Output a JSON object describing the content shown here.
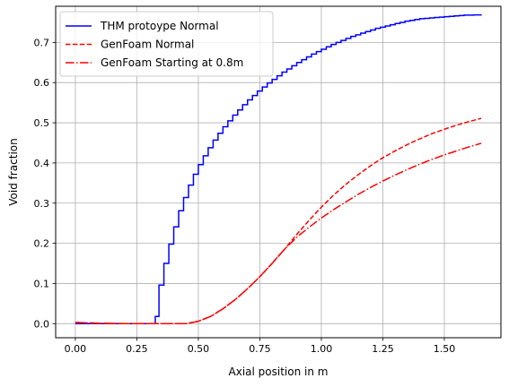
{
  "chart_data": {
    "type": "line",
    "title": "",
    "xlabel": "Axial position in m",
    "ylabel": "Void fraction",
    "xlim": [
      -0.08,
      1.73
    ],
    "ylim": [
      -0.035,
      0.79
    ],
    "grid": true,
    "legend_position": "top-left",
    "x_ticks": [
      0.0,
      0.25,
      0.5,
      0.75,
      1.0,
      1.25,
      1.5
    ],
    "x_tick_labels": [
      "0.00",
      "0.25",
      "0.50",
      "0.75",
      "1.00",
      "1.25",
      "1.50"
    ],
    "y_ticks": [
      0.0,
      0.1,
      0.2,
      0.3,
      0.4,
      0.5,
      0.6,
      0.7
    ],
    "y_tick_labels": [
      "0.0",
      "0.1",
      "0.2",
      "0.3",
      "0.4",
      "0.5",
      "0.6",
      "0.7"
    ],
    "series": [
      {
        "name": "THM protoype Normal",
        "color": "#0000ff",
        "style": "steps-post",
        "x": [
          0.0,
          0.025,
          0.05,
          0.075,
          0.1,
          0.125,
          0.15,
          0.175,
          0.2,
          0.225,
          0.25,
          0.275,
          0.3,
          0.325,
          0.34,
          0.36,
          0.38,
          0.4,
          0.42,
          0.44,
          0.46,
          0.48,
          0.5,
          0.52,
          0.54,
          0.56,
          0.58,
          0.6,
          0.62,
          0.64,
          0.66,
          0.68,
          0.7,
          0.72,
          0.74,
          0.76,
          0.78,
          0.8,
          0.82,
          0.84,
          0.86,
          0.88,
          0.9,
          0.92,
          0.94,
          0.96,
          0.98,
          1.0,
          1.02,
          1.04,
          1.06,
          1.08,
          1.1,
          1.12,
          1.14,
          1.16,
          1.18,
          1.2,
          1.22,
          1.24,
          1.26,
          1.28,
          1.3,
          1.32,
          1.34,
          1.36,
          1.38,
          1.4,
          1.42,
          1.44,
          1.46,
          1.48,
          1.5,
          1.52,
          1.54,
          1.56,
          1.58,
          1.6,
          1.62,
          1.65
        ],
        "y": [
          0.0,
          0.0,
          0.0,
          0.0,
          0.0,
          0.0,
          0.0,
          0.0,
          0.0,
          0.0,
          0.0,
          0.0,
          0.0,
          0.018,
          0.096,
          0.15,
          0.198,
          0.241,
          0.281,
          0.314,
          0.345,
          0.372,
          0.396,
          0.418,
          0.438,
          0.457,
          0.474,
          0.49,
          0.505,
          0.519,
          0.532,
          0.545,
          0.557,
          0.568,
          0.579,
          0.589,
          0.599,
          0.608,
          0.617,
          0.626,
          0.634,
          0.642,
          0.65,
          0.657,
          0.664,
          0.671,
          0.677,
          0.683,
          0.689,
          0.695,
          0.7,
          0.705,
          0.71,
          0.715,
          0.719,
          0.723,
          0.727,
          0.731,
          0.735,
          0.738,
          0.741,
          0.744,
          0.747,
          0.75,
          0.753,
          0.755,
          0.757,
          0.759,
          0.76,
          0.761,
          0.762,
          0.763,
          0.764,
          0.765,
          0.766,
          0.767,
          0.768,
          0.768,
          0.7685,
          0.769
        ]
      },
      {
        "name": "GenFoam Normal",
        "color": "#ff0000",
        "style": "dashed",
        "x": [
          0.0,
          0.1,
          0.2,
          0.3,
          0.4,
          0.45,
          0.5,
          0.55,
          0.6,
          0.65,
          0.7,
          0.75,
          0.8,
          0.85,
          0.9,
          0.95,
          1.0,
          1.05,
          1.1,
          1.15,
          1.2,
          1.25,
          1.3,
          1.35,
          1.4,
          1.45,
          1.5,
          1.55,
          1.6,
          1.65
        ],
        "y": [
          0.003,
          0.001,
          0.0,
          0.0,
          0.0,
          0.0,
          0.006,
          0.018,
          0.037,
          0.06,
          0.087,
          0.117,
          0.15,
          0.185,
          0.222,
          0.257,
          0.29,
          0.32,
          0.347,
          0.371,
          0.393,
          0.413,
          0.43,
          0.446,
          0.46,
          0.473,
          0.484,
          0.494,
          0.503,
          0.511
        ]
      },
      {
        "name": "GenFoam Starting at 0.8m",
        "color": "#ff0000",
        "style": "dashdot",
        "x": [
          0.0,
          0.1,
          0.2,
          0.3,
          0.4,
          0.45,
          0.5,
          0.55,
          0.6,
          0.65,
          0.7,
          0.75,
          0.8,
          0.85,
          0.9,
          0.95,
          1.0,
          1.05,
          1.1,
          1.15,
          1.2,
          1.25,
          1.3,
          1.35,
          1.4,
          1.45,
          1.5,
          1.55,
          1.6,
          1.65
        ],
        "y": [
          0.003,
          0.001,
          0.0,
          0.0,
          0.0,
          0.0,
          0.006,
          0.018,
          0.037,
          0.06,
          0.087,
          0.117,
          0.15,
          0.185,
          0.215,
          0.24,
          0.263,
          0.284,
          0.303,
          0.322,
          0.339,
          0.355,
          0.37,
          0.384,
          0.397,
          0.409,
          0.42,
          0.43,
          0.44,
          0.449
        ]
      }
    ]
  }
}
